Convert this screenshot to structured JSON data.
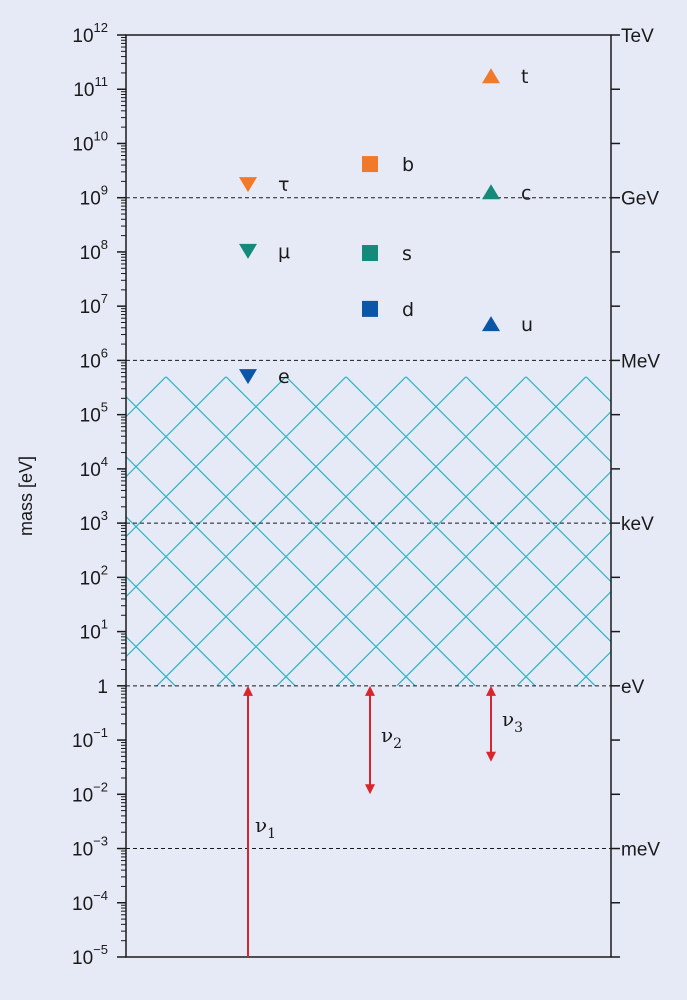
{
  "chart_data": {
    "type": "scatter",
    "ylabel": "mass [eV]",
    "yscale": "log",
    "ylim_exponent": [
      -5,
      12
    ],
    "ytick_labels": [
      {
        "exp": 12,
        "base": "10",
        "sup": "12"
      },
      {
        "exp": 11,
        "base": "10",
        "sup": "11"
      },
      {
        "exp": 10,
        "base": "10",
        "sup": "10"
      },
      {
        "exp": 9,
        "base": "10",
        "sup": "9"
      },
      {
        "exp": 8,
        "base": "10",
        "sup": "8"
      },
      {
        "exp": 7,
        "base": "10",
        "sup": "7"
      },
      {
        "exp": 6,
        "base": "10",
        "sup": "6"
      },
      {
        "exp": 5,
        "base": "10",
        "sup": "5"
      },
      {
        "exp": 4,
        "base": "10",
        "sup": "4"
      },
      {
        "exp": 3,
        "base": "10",
        "sup": "3"
      },
      {
        "exp": 2,
        "base": "10",
        "sup": "2"
      },
      {
        "exp": 1,
        "base": "10",
        "sup": "1"
      },
      {
        "exp": 0,
        "base": "1",
        "sup": ""
      },
      {
        "exp": -1,
        "base": "10",
        "sup": "−1"
      },
      {
        "exp": -2,
        "base": "10",
        "sup": "−2"
      },
      {
        "exp": -3,
        "base": "10",
        "sup": "−3"
      },
      {
        "exp": -4,
        "base": "10",
        "sup": "−4"
      },
      {
        "exp": -5,
        "base": "10",
        "sup": "−5"
      }
    ],
    "unit_lines": [
      {
        "label": "TeV",
        "exp": 12,
        "dashed": false
      },
      {
        "label": "GeV",
        "exp": 9,
        "dashed": true
      },
      {
        "label": "MeV",
        "exp": 6,
        "dashed": true
      },
      {
        "label": "keV",
        "exp": 3,
        "dashed": true
      },
      {
        "label": "eV",
        "exp": 0,
        "dashed": true
      },
      {
        "label": "meV",
        "exp": -3,
        "dashed": true
      }
    ],
    "excluded_region": {
      "from_exp": 0,
      "to_exp": 5.7,
      "color": "#2ab3c4"
    },
    "particles": [
      {
        "name": "τ",
        "column": 1,
        "log_mass": 9.25,
        "marker": "triangle-down",
        "color": "#f07a2a"
      },
      {
        "name": "μ",
        "column": 1,
        "log_mass": 8.02,
        "marker": "triangle-down",
        "color": "#138a7a"
      },
      {
        "name": "e",
        "column": 1,
        "log_mass": 5.71,
        "marker": "triangle-down",
        "color": "#0b56a5"
      },
      {
        "name": "b",
        "column": 2,
        "log_mass": 9.62,
        "marker": "square",
        "color": "#f07a2a"
      },
      {
        "name": "s",
        "column": 2,
        "log_mass": 7.98,
        "marker": "square",
        "color": "#138a7a"
      },
      {
        "name": "d",
        "column": 2,
        "log_mass": 6.95,
        "marker": "square",
        "color": "#0b56a5"
      },
      {
        "name": "t",
        "column": 3,
        "log_mass": 11.24,
        "marker": "triangle-up",
        "color": "#f07a2a"
      },
      {
        "name": "c",
        "column": 3,
        "log_mass": 9.1,
        "marker": "triangle-up",
        "color": "#138a7a"
      },
      {
        "name": "u",
        "column": 3,
        "log_mass": 6.67,
        "marker": "triangle-up",
        "color": "#0b56a5"
      }
    ],
    "neutrinos": [
      {
        "name": "ν",
        "sub": "1",
        "column": 1,
        "from_exp": -5,
        "to_exp": 0,
        "color": "#d9252b"
      },
      {
        "name": "ν",
        "sub": "2",
        "column": 2,
        "from_exp": -2,
        "to_exp": 0,
        "color": "#d9252b"
      },
      {
        "name": "ν",
        "sub": "3",
        "column": 3,
        "from_exp": -1.4,
        "to_exp": 0,
        "color": "#d9252b"
      }
    ]
  }
}
